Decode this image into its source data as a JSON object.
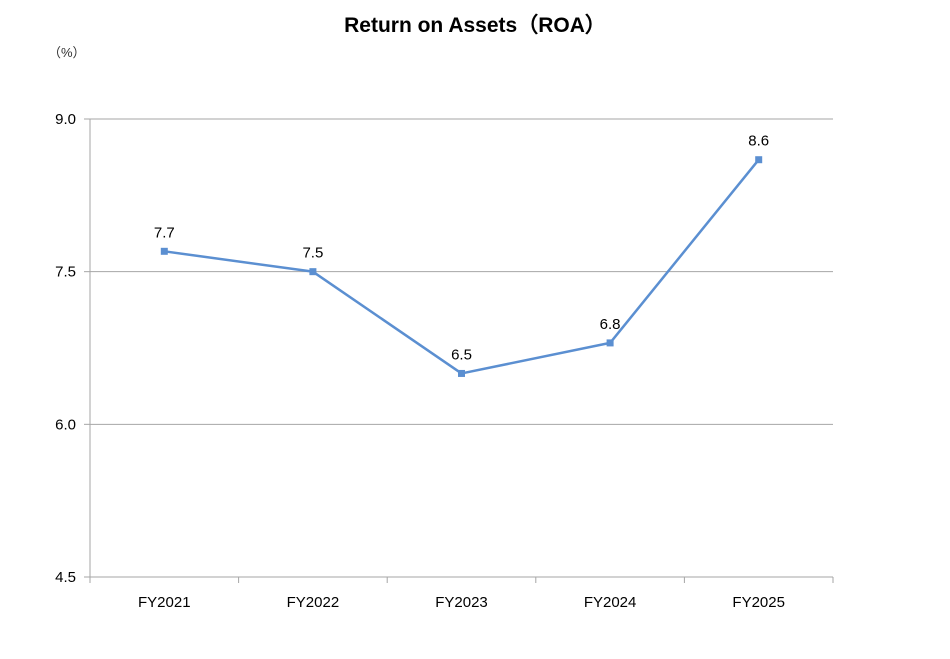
{
  "chart_data": {
    "type": "line",
    "title": "Return on Assets（ROA）",
    "unit_label": "（%）",
    "categories": [
      "FY2021",
      "FY2022",
      "FY2023",
      "FY2024",
      "FY2025"
    ],
    "series": [
      {
        "values": [
          7.7,
          7.5,
          6.5,
          6.8,
          8.6
        ],
        "color": "#5B8FD1"
      }
    ],
    "data_labels": [
      "7.7",
      "7.5",
      "6.5",
      "6.8",
      "8.6"
    ],
    "y_ticks": [
      "4.5",
      "6.0",
      "7.5",
      "9.0"
    ],
    "ylim": [
      4.5,
      9.0
    ],
    "grid": true,
    "gridline_color": "#A6A6A6",
    "legend": "none"
  }
}
